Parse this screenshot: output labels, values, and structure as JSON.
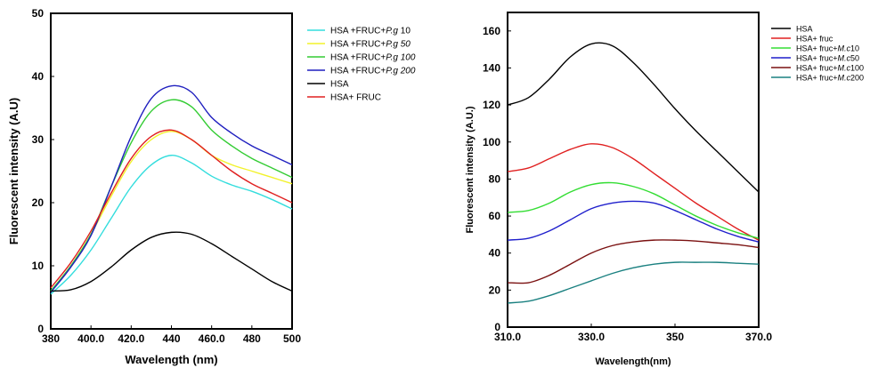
{
  "chart_data": [
    {
      "type": "line",
      "xlabel": "Wavelength (nm)",
      "ylabel": "Fluorescent intensity (A.U)",
      "xlim": [
        380,
        500
      ],
      "ylim": [
        0,
        50
      ],
      "x_ticks": [
        {
          "value": 380,
          "label": "380"
        },
        {
          "value": 400,
          "label": "400.0"
        },
        {
          "value": 420,
          "label": "420.0"
        },
        {
          "value": 440,
          "label": "440"
        },
        {
          "value": 460,
          "label": "460.0"
        },
        {
          "value": 480,
          "label": "480"
        },
        {
          "value": 500,
          "label": "500"
        }
      ],
      "y_ticks": [
        {
          "value": 0,
          "label": "0"
        },
        {
          "value": 10,
          "label": "10"
        },
        {
          "value": 20,
          "label": "20"
        },
        {
          "value": 30,
          "label": "30"
        },
        {
          "value": 40,
          "label": "40"
        },
        {
          "value": 50,
          "label": "50"
        }
      ],
      "grid": false,
      "legend_position": "right",
      "series": [
        {
          "name": "HSA +FRUC+",
          "name_italic": "P.g",
          "name_suffix": " 10",
          "color": "#33dddd",
          "x": [
            380,
            390,
            400,
            410,
            420,
            430,
            440,
            450,
            460,
            470,
            480,
            490,
            500
          ],
          "y": [
            5.5,
            8.5,
            12.5,
            17.5,
            22.5,
            26.0,
            27.5,
            26.3,
            24.2,
            22.8,
            21.8,
            20.5,
            19.0
          ]
        },
        {
          "name": "HSA +FRUC+",
          "name_italic": "P.g  50",
          "name_suffix": "",
          "color": "#f2f22a",
          "x": [
            380,
            390,
            400,
            410,
            420,
            430,
            440,
            450,
            460,
            470,
            480,
            490,
            500
          ],
          "y": [
            6.0,
            10.0,
            15.0,
            21.0,
            26.5,
            30.0,
            31.3,
            30.0,
            27.5,
            26.0,
            25.0,
            24.0,
            23.0
          ]
        },
        {
          "name": "HSA +FRUC+",
          "name_italic": "P.g 100",
          "name_suffix": "",
          "color": "#33cc33",
          "x": [
            380,
            390,
            400,
            410,
            420,
            430,
            440,
            450,
            460,
            470,
            480,
            490,
            500
          ],
          "y": [
            6.0,
            10.0,
            15.0,
            22.5,
            29.5,
            34.5,
            36.3,
            35.2,
            31.5,
            29.0,
            27.0,
            25.5,
            24.0
          ]
        },
        {
          "name": "HSA +FRUC+",
          "name_italic": "P.g 200",
          "name_suffix": "",
          "color": "#1f1fbf",
          "x": [
            380,
            390,
            400,
            410,
            420,
            430,
            440,
            450,
            460,
            470,
            480,
            490,
            500
          ],
          "y": [
            5.8,
            9.8,
            14.8,
            22.5,
            30.5,
            36.5,
            38.5,
            37.5,
            33.5,
            31.0,
            29.0,
            27.5,
            26.0
          ]
        },
        {
          "name": "HSA",
          "name_italic": "",
          "name_suffix": "",
          "color": "#000000",
          "x": [
            380,
            390,
            400,
            410,
            420,
            430,
            440,
            450,
            460,
            470,
            480,
            490,
            500
          ],
          "y": [
            6.0,
            6.2,
            7.5,
            9.8,
            12.5,
            14.5,
            15.3,
            15.0,
            13.5,
            11.5,
            9.5,
            7.5,
            6.0
          ]
        },
        {
          "name": "HSA+ FRUC",
          "name_italic": "",
          "name_suffix": "",
          "color": "#e02020",
          "x": [
            380,
            390,
            400,
            410,
            420,
            430,
            440,
            450,
            460,
            470,
            480,
            490,
            500
          ],
          "y": [
            6.5,
            10.5,
            15.5,
            21.5,
            27.0,
            30.5,
            31.5,
            30.0,
            27.5,
            25.0,
            23.0,
            21.5,
            20.0
          ]
        }
      ]
    },
    {
      "type": "line",
      "xlabel": "Wavelength(nm)",
      "ylabel": "Fluorescent intensity (A.U.)",
      "xlim": [
        310,
        370
      ],
      "ylim": [
        0,
        170
      ],
      "x_ticks": [
        {
          "value": 310,
          "label": "310.0"
        },
        {
          "value": 330,
          "label": "330.0"
        },
        {
          "value": 350,
          "label": "350"
        },
        {
          "value": 370,
          "label": "370.0"
        }
      ],
      "y_ticks": [
        {
          "value": 0,
          "label": "0"
        },
        {
          "value": 20,
          "label": "20"
        },
        {
          "value": 40,
          "label": "40"
        },
        {
          "value": 60,
          "label": "60"
        },
        {
          "value": 80,
          "label": "80"
        },
        {
          "value": 100,
          "label": "100"
        },
        {
          "value": 120,
          "label": "120"
        },
        {
          "value": 140,
          "label": "140"
        },
        {
          "value": 160,
          "label": "160"
        }
      ],
      "grid": false,
      "legend_position": "right",
      "series": [
        {
          "name": "HSA",
          "name_italic": "",
          "name_suffix": "",
          "color": "#000000",
          "x": [
            310,
            315,
            320,
            325,
            330,
            335,
            340,
            345,
            350,
            355,
            360,
            365,
            370
          ],
          "y": [
            120,
            124,
            134,
            146,
            153,
            152,
            143,
            131,
            118,
            106,
            95,
            84,
            73
          ]
        },
        {
          "name": "HSA+ fruc",
          "name_italic": "",
          "name_suffix": "",
          "color": "#e02020",
          "x": [
            310,
            315,
            320,
            325,
            330,
            335,
            340,
            345,
            350,
            355,
            360,
            365,
            370
          ],
          "y": [
            84,
            86,
            91,
            96,
            99,
            97,
            91,
            83,
            75,
            67,
            60,
            53,
            47
          ]
        },
        {
          "name": "HSA+ fruc+",
          "name_italic": "M.c",
          "name_suffix": "10",
          "color": "#33dd33",
          "x": [
            310,
            315,
            320,
            325,
            330,
            335,
            340,
            345,
            350,
            355,
            360,
            365,
            370
          ],
          "y": [
            62,
            63,
            67,
            73,
            77,
            78,
            76,
            72,
            66,
            60,
            55,
            51,
            48
          ]
        },
        {
          "name": "HSA+ fruc+",
          "name_italic": "M.c",
          "name_suffix": "50",
          "color": "#1f1fcc",
          "x": [
            310,
            315,
            320,
            325,
            330,
            335,
            340,
            345,
            350,
            355,
            360,
            365,
            370
          ],
          "y": [
            47,
            48,
            52,
            58,
            64,
            67,
            68,
            67,
            63,
            58,
            53,
            49,
            46
          ]
        },
        {
          "name": "HSA+ fruc+",
          "name_italic": "M.c",
          "name_suffix": "100",
          "color": "#7a1010",
          "x": [
            310,
            315,
            320,
            325,
            330,
            335,
            340,
            345,
            350,
            355,
            360,
            365,
            370
          ],
          "y": [
            24,
            24,
            28,
            34,
            40,
            44,
            46,
            47,
            47,
            46.5,
            45.5,
            44.5,
            43
          ]
        },
        {
          "name": "HSA+ fruc+",
          "name_italic": "M.c",
          "name_suffix": "200",
          "color": "#1a8080",
          "x": [
            310,
            315,
            320,
            325,
            330,
            335,
            340,
            345,
            350,
            355,
            360,
            365,
            370
          ],
          "y": [
            13,
            14,
            17,
            21,
            25,
            29,
            32,
            34,
            35,
            35,
            35,
            34.5,
            34
          ]
        }
      ]
    }
  ]
}
